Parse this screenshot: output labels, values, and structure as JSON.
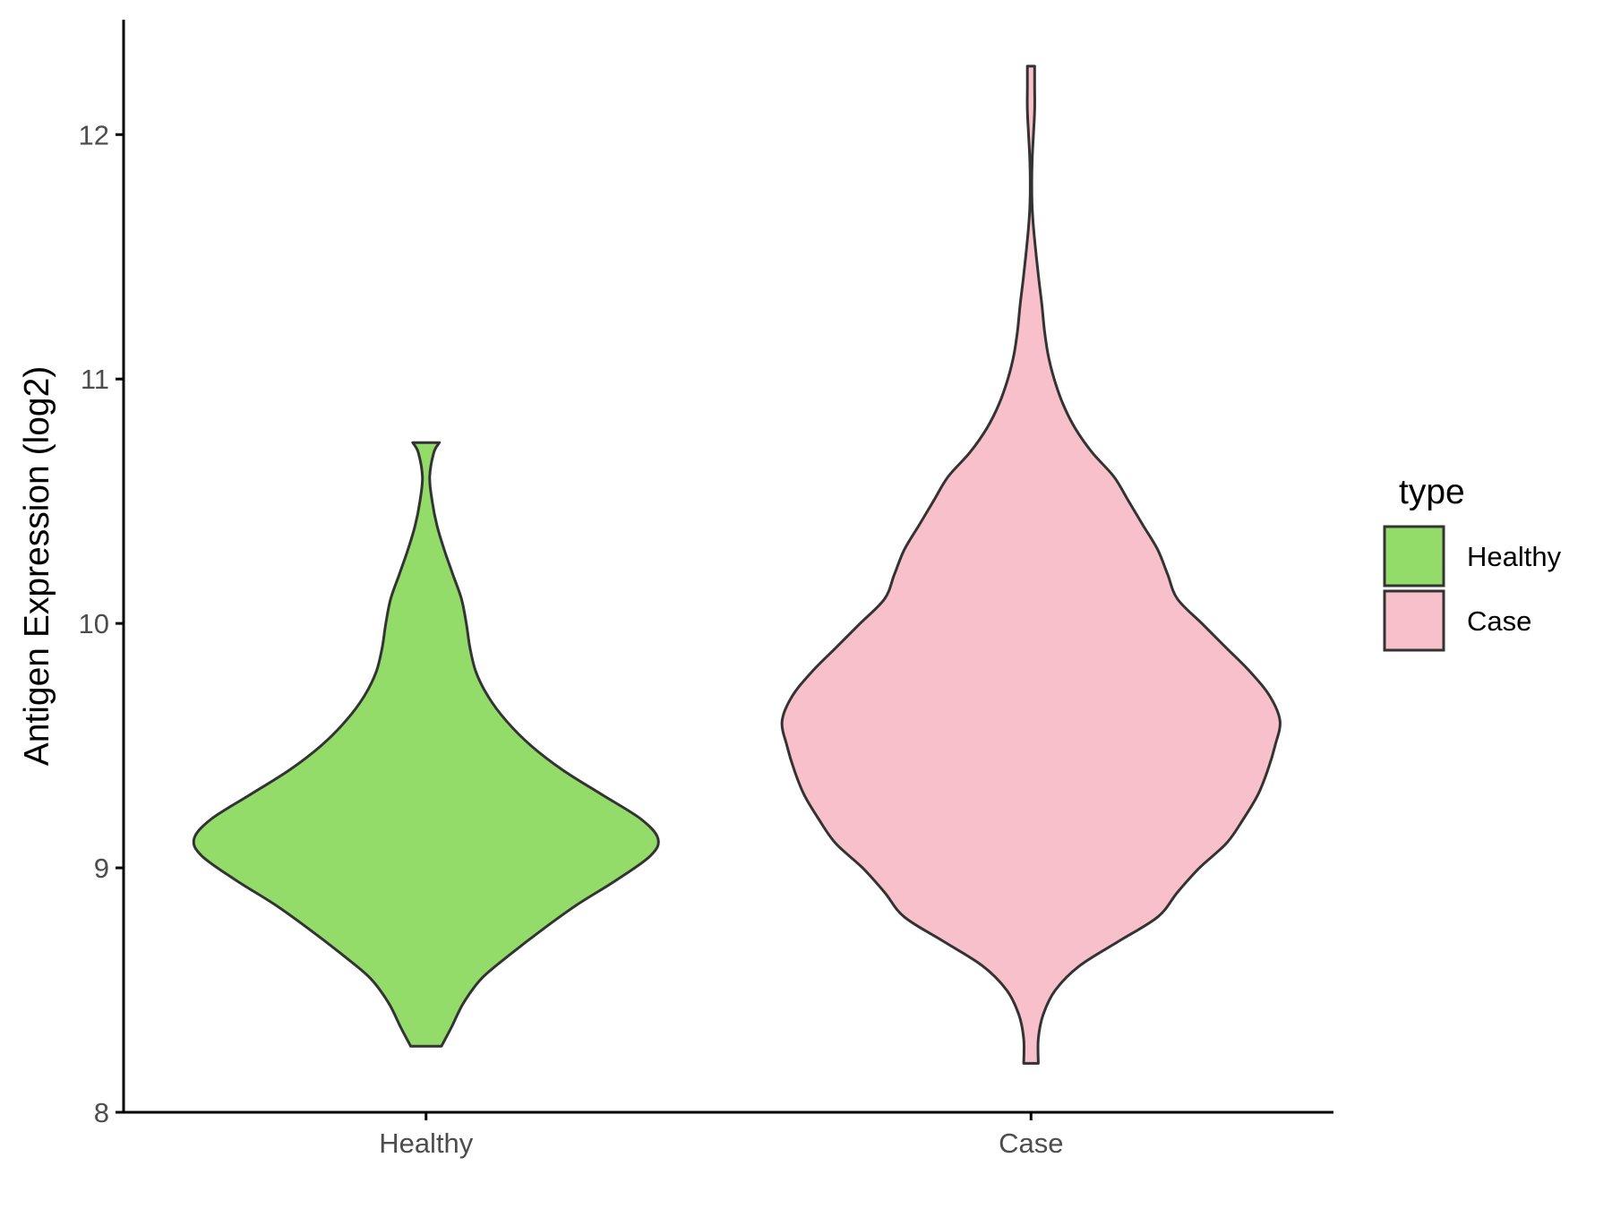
{
  "chart_data": {
    "type": "violin",
    "ylabel": "Antigen Expression (log2)",
    "xlabel": "",
    "ylim": [
      8,
      12.5
    ],
    "yticks": [
      8,
      9,
      10,
      11,
      12
    ],
    "ytick_labels": [
      "8",
      "9",
      "10",
      "11",
      "12"
    ],
    "categories": [
      "Healthy",
      "Case"
    ],
    "grid": false,
    "legend": {
      "title": "type",
      "position": "right",
      "entries": [
        "Healthy",
        "Case"
      ]
    },
    "series": [
      {
        "name": "Healthy",
        "color": "#93dc6a",
        "min": 8.27,
        "max": 10.74,
        "density": [
          [
            8.27,
            0.063
          ],
          [
            8.35,
            0.105
          ],
          [
            8.45,
            0.155
          ],
          [
            8.55,
            0.23
          ],
          [
            8.65,
            0.35
          ],
          [
            8.75,
            0.48
          ],
          [
            8.85,
            0.62
          ],
          [
            8.95,
            0.78
          ],
          [
            9.05,
            0.92
          ],
          [
            9.12,
            0.95
          ],
          [
            9.2,
            0.88
          ],
          [
            9.3,
            0.72
          ],
          [
            9.4,
            0.56
          ],
          [
            9.5,
            0.43
          ],
          [
            9.6,
            0.33
          ],
          [
            9.7,
            0.255
          ],
          [
            9.8,
            0.205
          ],
          [
            9.9,
            0.18
          ],
          [
            10.0,
            0.165
          ],
          [
            10.1,
            0.145
          ],
          [
            10.2,
            0.11
          ],
          [
            10.3,
            0.075
          ],
          [
            10.4,
            0.045
          ],
          [
            10.5,
            0.025
          ],
          [
            10.6,
            0.015
          ],
          [
            10.7,
            0.032
          ],
          [
            10.74,
            0.055
          ]
        ]
      },
      {
        "name": "Case",
        "color": "#f8c0cb",
        "min": 8.2,
        "max": 12.28,
        "density": [
          [
            8.2,
            0.03
          ],
          [
            8.3,
            0.03
          ],
          [
            8.4,
            0.05
          ],
          [
            8.5,
            0.1
          ],
          [
            8.6,
            0.2
          ],
          [
            8.7,
            0.36
          ],
          [
            8.8,
            0.52
          ],
          [
            8.9,
            0.6
          ],
          [
            9.0,
            0.69
          ],
          [
            9.1,
            0.8
          ],
          [
            9.2,
            0.87
          ],
          [
            9.3,
            0.93
          ],
          [
            9.4,
            0.97
          ],
          [
            9.5,
            1.0
          ],
          [
            9.6,
            1.02
          ],
          [
            9.7,
            0.98
          ],
          [
            9.8,
            0.9
          ],
          [
            9.9,
            0.8
          ],
          [
            10.0,
            0.7
          ],
          [
            10.1,
            0.6
          ],
          [
            10.2,
            0.56
          ],
          [
            10.3,
            0.52
          ],
          [
            10.4,
            0.46
          ],
          [
            10.5,
            0.4
          ],
          [
            10.6,
            0.34
          ],
          [
            10.7,
            0.25
          ],
          [
            10.8,
            0.18
          ],
          [
            10.9,
            0.13
          ],
          [
            11.0,
            0.095
          ],
          [
            11.1,
            0.07
          ],
          [
            11.2,
            0.055
          ],
          [
            11.3,
            0.045
          ],
          [
            11.4,
            0.033
          ],
          [
            11.5,
            0.022
          ],
          [
            11.6,
            0.012
          ],
          [
            11.7,
            0.005
          ],
          [
            11.8,
            0.003
          ],
          [
            11.9,
            0.005
          ],
          [
            12.0,
            0.01
          ],
          [
            12.1,
            0.015
          ],
          [
            12.2,
            0.015
          ],
          [
            12.28,
            0.015
          ]
        ]
      }
    ]
  }
}
